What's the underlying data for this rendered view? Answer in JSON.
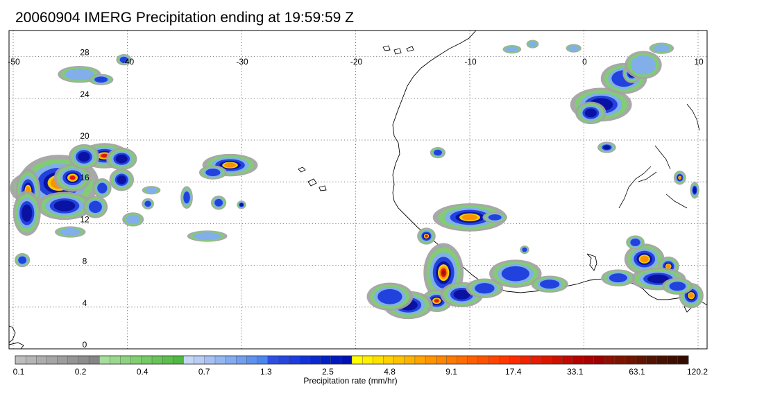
{
  "title": "20060904 IMERG Precipitation ending at 19:59:59 Z",
  "lon_ticks": [
    "-50",
    "-40",
    "-30",
    "-20",
    "-10",
    "0",
    "10"
  ],
  "lat_ticks": [
    "28",
    "24",
    "20",
    "16",
    "12",
    "8",
    "4",
    "0"
  ],
  "colorbar": {
    "label": "Precipitation rate (mm/hr)",
    "tick_labels": [
      "0.1",
      "0.2",
      "0.4",
      "0.7",
      "1.3",
      "2.5",
      "4.8",
      "9.1",
      "17.4",
      "33.1",
      "63.1",
      "120.2"
    ],
    "colors": [
      "#bdbdbd",
      "#b5b5b5",
      "#adadad",
      "#a5a5a5",
      "#9d9d9d",
      "#959595",
      "#8d8d8d",
      "#858585",
      "#a6dd9a",
      "#99d98b",
      "#8dd47e",
      "#80cf71",
      "#74ca64",
      "#68c458",
      "#5bbe4d",
      "#4fb843",
      "#c6d7f6",
      "#b7cdf5",
      "#a6c2f4",
      "#94b7f2",
      "#82acf0",
      "#709ff0",
      "#5e92ef",
      "#4c85ee",
      "#2f4fe3",
      "#2546df",
      "#1c3cdc",
      "#1232d6",
      "#0a28d0",
      "#0020c8",
      "#0018bf",
      "#0010b5",
      "#ffff00",
      "#fff000",
      "#ffe100",
      "#ffd100",
      "#ffc200",
      "#ffb300",
      "#ffa400",
      "#ff9400",
      "#ff8700",
      "#ff7900",
      "#ff6c00",
      "#ff5f00",
      "#ff5200",
      "#ff4500",
      "#ff3800",
      "#ff2a00",
      "#f42200",
      "#e81c00",
      "#db1500",
      "#cf0f00",
      "#c20800",
      "#b40200",
      "#a80000",
      "#9c0000",
      "#8e0f00",
      "#7e1300",
      "#701400",
      "#621400",
      "#541200",
      "#481000",
      "#3d0e00",
      "#330b00"
    ]
  },
  "colors": {
    "gray": "#a3a3a3",
    "green": "#7fcd72",
    "light_blue": "#82acf0",
    "blue": "#1c3cdc",
    "dark_blue": "#0a10a0",
    "yellow": "#ffd800",
    "orange": "#ff8c00",
    "red": "#e01010",
    "dark_red": "#8b1a0a"
  },
  "precip_cells": [
    {
      "lon": -47.6,
      "lat": 15.0,
      "rlon": 2.0,
      "rlat": 1.3,
      "peak": 5
    },
    {
      "lon": -46.0,
      "lat": 15.5,
      "rlon": 2.6,
      "rlat": 2.0,
      "peak": 4
    },
    {
      "lon": -44.8,
      "lat": 16.0,
      "rlon": 1.2,
      "rlat": 1.0,
      "peak": 5
    },
    {
      "lon": -48.7,
      "lat": 14.7,
      "rlon": 0.8,
      "rlat": 1.6,
      "peak": 4
    },
    {
      "lon": -45.5,
      "lat": 13.3,
      "rlon": 1.8,
      "rlat": 1.0,
      "peak": 3
    },
    {
      "lon": -48.8,
      "lat": 12.6,
      "rlon": 0.9,
      "rlat": 1.6,
      "peak": 3
    },
    {
      "lon": -42.0,
      "lat": 18.1,
      "rlon": 1.6,
      "rlat": 0.9,
      "peak": 5
    },
    {
      "lon": -40.5,
      "lat": 17.8,
      "rlon": 1.0,
      "rlat": 0.8,
      "peak": 3
    },
    {
      "lon": -43.8,
      "lat": 18.0,
      "rlon": 1.0,
      "rlat": 0.9,
      "peak": 3
    },
    {
      "lon": -40.5,
      "lat": 15.8,
      "rlon": 0.8,
      "rlat": 0.8,
      "peak": 3
    },
    {
      "lon": -42.2,
      "lat": 15.0,
      "rlon": 0.6,
      "rlat": 0.7,
      "peak": 2
    },
    {
      "lon": -42.8,
      "lat": 13.2,
      "rlon": 0.8,
      "rlat": 0.8,
      "peak": 2
    },
    {
      "lon": -39.5,
      "lat": 12.0,
      "rlon": 0.7,
      "rlat": 0.5,
      "peak": 1
    },
    {
      "lon": -38.2,
      "lat": 13.5,
      "rlon": 0.4,
      "rlat": 0.4,
      "peak": 2
    },
    {
      "lon": -45.0,
      "lat": 10.8,
      "rlon": 1.0,
      "rlat": 0.4,
      "peak": 1
    },
    {
      "lon": -49.2,
      "lat": 8.1,
      "rlon": 0.5,
      "rlat": 0.5,
      "peak": 2
    },
    {
      "lon": -44.2,
      "lat": 25.9,
      "rlon": 1.4,
      "rlat": 0.6,
      "peak": 1
    },
    {
      "lon": -42.3,
      "lat": 25.4,
      "rlon": 0.8,
      "rlat": 0.4,
      "peak": 2
    },
    {
      "lon": -40.3,
      "lat": 27.3,
      "rlon": 0.5,
      "rlat": 0.4,
      "peak": 2
    },
    {
      "lon": -31.0,
      "lat": 17.2,
      "rlon": 1.8,
      "rlat": 0.8,
      "peak": 4
    },
    {
      "lon": -32.5,
      "lat": 16.5,
      "rlon": 0.9,
      "rlat": 0.5,
      "peak": 2
    },
    {
      "lon": -34.8,
      "lat": 14.1,
      "rlon": 0.4,
      "rlat": 0.8,
      "peak": 2
    },
    {
      "lon": -32.0,
      "lat": 13.6,
      "rlon": 0.5,
      "rlat": 0.5,
      "peak": 2
    },
    {
      "lon": -30.0,
      "lat": 13.4,
      "rlon": 0.3,
      "rlat": 0.3,
      "peak": 3
    },
    {
      "lon": -37.9,
      "lat": 14.8,
      "rlon": 0.6,
      "rlat": 0.3,
      "peak": 1
    },
    {
      "lon": -33.0,
      "lat": 10.4,
      "rlon": 1.3,
      "rlat": 0.4,
      "peak": 1
    },
    {
      "lon": -12.3,
      "lat": 6.9,
      "rlon": 1.3,
      "rlat": 2.1,
      "peak": 6
    },
    {
      "lon": -12.9,
      "lat": 4.2,
      "rlon": 1.0,
      "rlat": 0.8,
      "peak": 5
    },
    {
      "lon": -15.4,
      "lat": 3.8,
      "rlon": 1.6,
      "rlat": 1.0,
      "peak": 3
    },
    {
      "lon": -17.0,
      "lat": 4.6,
      "rlon": 1.5,
      "rlat": 1.0,
      "peak": 2
    },
    {
      "lon": -10.7,
      "lat": 4.8,
      "rlon": 1.4,
      "rlat": 0.9,
      "peak": 3
    },
    {
      "lon": -8.7,
      "lat": 5.4,
      "rlon": 1.2,
      "rlat": 0.7,
      "peak": 2
    },
    {
      "lon": -6.0,
      "lat": 6.8,
      "rlon": 1.7,
      "rlat": 1.0,
      "peak": 2
    },
    {
      "lon": -13.8,
      "lat": 10.4,
      "rlon": 0.6,
      "rlat": 0.6,
      "peak": 5
    },
    {
      "lon": -10.0,
      "lat": 12.2,
      "rlon": 2.4,
      "rlat": 1.0,
      "peak": 4
    },
    {
      "lon": -7.8,
      "lat": 12.2,
      "rlon": 0.8,
      "rlat": 0.4,
      "peak": 2
    },
    {
      "lon": -12.8,
      "lat": 18.4,
      "rlon": 0.5,
      "rlat": 0.4,
      "peak": 2
    },
    {
      "lon": -3.0,
      "lat": 5.8,
      "rlon": 1.2,
      "rlat": 0.6,
      "peak": 2
    },
    {
      "lon": -5.2,
      "lat": 9.1,
      "rlon": 0.3,
      "rlat": 0.3,
      "peak": 2
    },
    {
      "lon": 5.3,
      "lat": 8.2,
      "rlon": 1.3,
      "rlat": 1.1,
      "peak": 4
    },
    {
      "lon": 7.4,
      "lat": 7.5,
      "rlon": 0.7,
      "rlat": 0.7,
      "peak": 4
    },
    {
      "lon": 6.5,
      "lat": 6.3,
      "rlon": 1.8,
      "rlat": 0.8,
      "peak": 3
    },
    {
      "lon": 4.5,
      "lat": 9.8,
      "rlon": 0.6,
      "rlat": 0.5,
      "peak": 2
    },
    {
      "lon": 3.0,
      "lat": 6.4,
      "rlon": 1.1,
      "rlat": 0.6,
      "peak": 2
    },
    {
      "lon": 9.4,
      "lat": 4.7,
      "rlon": 0.8,
      "rlat": 0.9,
      "peak": 4
    },
    {
      "lon": 8.2,
      "lat": 5.6,
      "rlon": 1.0,
      "rlat": 0.6,
      "peak": 2
    },
    {
      "lon": 1.5,
      "lat": 23.0,
      "rlon": 2.0,
      "rlat": 1.2,
      "peak": 3
    },
    {
      "lon": 0.6,
      "lat": 22.2,
      "rlon": 1.0,
      "rlat": 0.8,
      "peak": 3
    },
    {
      "lon": 3.5,
      "lat": 25.5,
      "rlon": 1.5,
      "rlat": 1.1,
      "peak": 2
    },
    {
      "lon": 4.2,
      "lat": 26.0,
      "rlon": 0.6,
      "rlat": 0.7,
      "peak": 3
    },
    {
      "lon": 2.0,
      "lat": 18.9,
      "rlon": 0.6,
      "rlat": 0.4,
      "peak": 3
    },
    {
      "lon": 8.4,
      "lat": 16.0,
      "rlon": 0.4,
      "rlat": 0.5,
      "peak": 4
    },
    {
      "lon": 9.7,
      "lat": 14.8,
      "rlon": 0.3,
      "rlat": 0.6,
      "peak": 3
    },
    {
      "lon": 5.2,
      "lat": 26.8,
      "rlon": 1.2,
      "rlat": 1.0,
      "peak": 1
    },
    {
      "lon": 6.8,
      "lat": 28.4,
      "rlon": 0.8,
      "rlat": 0.4,
      "peak": 1
    },
    {
      "lon": -6.3,
      "lat": 28.3,
      "rlon": 0.6,
      "rlat": 0.3,
      "peak": 1
    },
    {
      "lon": -4.5,
      "lat": 28.8,
      "rlon": 0.4,
      "rlat": 0.3,
      "peak": 1
    },
    {
      "lon": -0.9,
      "lat": 28.4,
      "rlon": 0.5,
      "rlat": 0.3,
      "peak": 1
    }
  ]
}
